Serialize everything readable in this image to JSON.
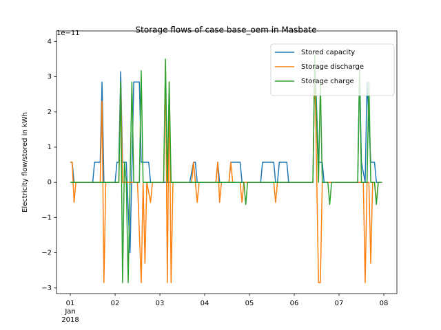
{
  "chart_data": {
    "type": "line",
    "title": "Storage flows of case base_oem in Masbate",
    "y_label": "Electricity flow/stored in kWh",
    "y_offset_label": "1e−11",
    "xlim": [
      "2017-12-31 16:36",
      "2018-01-08 07:00"
    ],
    "xticks": [
      {
        "value": "2018-01-01 00:00",
        "label": "01"
      },
      {
        "value": "2018-01-02 00:00",
        "label": "02"
      },
      {
        "value": "2018-01-03 00:00",
        "label": "03"
      },
      {
        "value": "2018-01-04 00:00",
        "label": "04"
      },
      {
        "value": "2018-01-05 00:00",
        "label": "05"
      },
      {
        "value": "2018-01-06 00:00",
        "label": "06"
      },
      {
        "value": "2018-01-07 00:00",
        "label": "07"
      },
      {
        "value": "2018-01-08 00:00",
        "label": "08"
      }
    ],
    "xtick_sublabels": [
      "Jan",
      "2018"
    ],
    "ylim": [
      -3.16,
      4.3
    ],
    "yticks": [
      {
        "value": -3,
        "label": "−3"
      },
      {
        "value": -2,
        "label": "−2"
      },
      {
        "value": -1,
        "label": "−1"
      },
      0,
      1,
      2,
      3,
      4
    ],
    "legend": "upper right",
    "series": [
      {
        "name": "Stored capacity",
        "color": "#1f77b4",
        "x": [
          "2018-01-01 00:00",
          "2018-01-01 01:00",
          "2018-01-01 02:00",
          "2018-01-01 12:00",
          "2018-01-01 13:00",
          "2018-01-01 16:00",
          "2018-01-01 17:00",
          "2018-01-01 18:00",
          "2018-01-02 00:00",
          "2018-01-02 01:00",
          "2018-01-02 02:00",
          "2018-01-02 03:00",
          "2018-01-02 04:00",
          "2018-01-02 06:00",
          "2018-01-02 08:00",
          "2018-01-02 10:00",
          "2018-01-02 13:00",
          "2018-01-02 14:00",
          "2018-01-02 18:00",
          "2018-01-02 19:00",
          "2018-01-03 16:00",
          "2018-01-03 18:00",
          "2018-01-03 19:00",
          "2018-01-03 20:00",
          "2018-01-04 06:00",
          "2018-01-04 07:00",
          "2018-01-04 08:00",
          "2018-01-04 13:00",
          "2018-01-04 14:00",
          "2018-01-04 19:00",
          "2018-01-04 20:00",
          "2018-01-05 06:00",
          "2018-01-05 07:00",
          "2018-01-05 13:00",
          "2018-01-05 14:00",
          "2018-01-05 15:00",
          "2018-01-05 16:00",
          "2018-01-05 20:00",
          "2018-01-05 21:00",
          "2018-01-06 10:00",
          "2018-01-06 11:00",
          "2018-01-06 13:00",
          "2018-01-06 15:00",
          "2018-01-06 16:00",
          "2018-01-07 10:00",
          "2018-01-07 11:00",
          "2018-01-07 12:00",
          "2018-01-07 14:00",
          "2018-01-07 15:00",
          "2018-01-07 17:00",
          "2018-01-07 19:00",
          "2018-01-07 20:00",
          "2018-01-07 23:00"
        ],
        "values": [
          0.57,
          0.57,
          0,
          0,
          0.57,
          0.57,
          2.85,
          0,
          0,
          0.57,
          0.57,
          3.14,
          0.57,
          0.57,
          -2.0,
          2.85,
          2.85,
          0.57,
          0.57,
          0,
          0,
          0.57,
          0.57,
          0,
          0,
          0.57,
          0,
          0,
          0.57,
          0.57,
          0,
          0,
          0.57,
          0.57,
          0,
          0,
          0.57,
          0.57,
          0,
          0,
          3.6,
          0.57,
          0.57,
          0,
          0,
          3.2,
          0.57,
          0,
          2.85,
          0.57,
          0.57,
          0,
          0
        ]
      },
      {
        "name": "Storage discharge",
        "color": "#ff7f0e",
        "x": [
          "2018-01-01 00:00",
          "2018-01-01 01:00",
          "2018-01-01 02:00",
          "2018-01-01 03:00",
          "2018-01-01 16:00",
          "2018-01-01 17:00",
          "2018-01-01 18:00",
          "2018-01-01 19:00",
          "2018-01-02 02:00",
          "2018-01-02 03:00",
          "2018-01-02 04:00",
          "2018-01-02 12:00",
          "2018-01-02 14:00",
          "2018-01-02 15:00",
          "2018-01-02 16:00",
          "2018-01-02 17:00",
          "2018-01-02 19:00",
          "2018-01-02 20:00",
          "2018-01-03 02:00",
          "2018-01-03 03:00",
          "2018-01-03 04:00",
          "2018-01-03 05:00",
          "2018-01-03 06:00",
          "2018-01-03 07:00",
          "2018-01-03 17:00",
          "2018-01-03 18:00",
          "2018-01-03 19:00",
          "2018-01-03 20:00",
          "2018-01-03 21:00",
          "2018-01-04 06:00",
          "2018-01-04 07:00",
          "2018-01-04 08:00",
          "2018-01-04 09:00",
          "2018-01-04 13:00",
          "2018-01-04 14:00",
          "2018-01-04 15:00",
          "2018-01-04 19:00",
          "2018-01-04 20:00",
          "2018-01-04 21:00",
          "2018-01-05 13:00",
          "2018-01-05 14:00",
          "2018-01-05 15:00",
          "2018-01-06 10:00",
          "2018-01-06 11:00",
          "2018-01-06 13:00",
          "2018-01-06 14:00",
          "2018-01-06 15:00",
          "2018-01-07 13:00",
          "2018-01-07 14:00",
          "2018-01-07 15:00",
          "2018-01-07 16:00",
          "2018-01-07 17:00",
          "2018-01-07 18:00",
          "2018-01-07 19:00",
          "2018-01-07 20:00",
          "2018-01-07 21:00",
          "2018-01-07 23:00"
        ],
        "values": [
          0.57,
          0.57,
          -0.57,
          0,
          0,
          2.3,
          -2.85,
          0,
          0,
          2.8,
          0,
          0,
          -2.85,
          0,
          -2.3,
          0,
          -0.57,
          0,
          0,
          3.4,
          -2.85,
          2.85,
          -2.85,
          0,
          0,
          0.57,
          0,
          -0.57,
          0,
          0,
          0.57,
          -0.57,
          0,
          0,
          0.57,
          0,
          0,
          -0.57,
          0,
          0,
          -0.57,
          0,
          0,
          3.4,
          -2.85,
          -2.85,
          0,
          0,
          -2.85,
          0,
          0,
          -2.3,
          0,
          0,
          -0.57,
          0,
          0
        ]
      },
      {
        "name": "Storage charge",
        "color": "#2ca02c",
        "x": [
          "2018-01-01 00:00",
          "2018-01-02 02:00",
          "2018-01-02 03:00",
          "2018-01-02 04:00",
          "2018-01-02 05:00",
          "2018-01-02 06:00",
          "2018-01-02 07:00",
          "2018-01-02 09:00",
          "2018-01-02 10:00",
          "2018-01-02 13:00",
          "2018-01-02 14:00",
          "2018-01-02 15:00",
          "2018-01-03 02:00",
          "2018-01-03 03:00",
          "2018-01-03 04:00",
          "2018-01-03 05:00",
          "2018-01-03 06:00",
          "2018-01-04 21:00",
          "2018-01-04 22:00",
          "2018-01-04 23:00",
          "2018-01-06 10:00",
          "2018-01-06 11:00",
          "2018-01-06 13:00",
          "2018-01-06 14:00",
          "2018-01-06 15:00",
          "2018-01-06 18:00",
          "2018-01-06 19:00",
          "2018-01-06 20:00",
          "2018-01-07 10:00",
          "2018-01-07 11:00",
          "2018-01-07 12:00",
          "2018-01-07 15:00",
          "2018-01-07 16:00",
          "2018-01-07 17:00",
          "2018-01-07 19:00",
          "2018-01-07 20:00",
          "2018-01-07 21:00",
          "2018-01-07 23:00"
        ],
        "values": [
          0,
          0,
          2.85,
          -2.85,
          0.57,
          0,
          -2.85,
          2.85,
          0,
          0,
          3.17,
          0,
          0,
          3.5,
          0,
          2.85,
          0,
          0,
          -0.63,
          0,
          0,
          3.6,
          0,
          2.85,
          0,
          0,
          -0.63,
          0,
          0,
          3.2,
          0,
          0,
          2.85,
          0,
          0,
          -0.63,
          0,
          0
        ]
      }
    ]
  }
}
